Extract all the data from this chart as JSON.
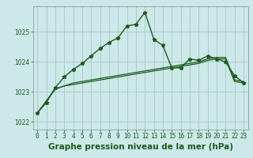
{
  "title": "Graphe pression niveau de la mer (hPa)",
  "background_color": "#cce8e8",
  "grid_color": "#aacccc",
  "line_color_dark": "#1a5c1a",
  "line_color_mid": "#2e7d2e",
  "hours": [
    0,
    1,
    2,
    3,
    4,
    5,
    6,
    7,
    8,
    9,
    10,
    11,
    12,
    13,
    14,
    15,
    16,
    17,
    18,
    19,
    20,
    21,
    22,
    23
  ],
  "pressure_main": [
    1022.3,
    1022.65,
    1023.15,
    1023.5,
    1023.75,
    1023.95,
    1024.2,
    1024.45,
    1024.65,
    1024.8,
    1025.2,
    1025.25,
    1025.65,
    1024.75,
    1024.55,
    1023.8,
    1023.8,
    1024.1,
    1024.05,
    1024.2,
    1024.1,
    1024.0,
    1023.55,
    1023.3
  ],
  "pressure_line2": [
    1022.3,
    1022.7,
    1023.1,
    1023.2,
    1023.25,
    1023.3,
    1023.35,
    1023.4,
    1023.45,
    1023.5,
    1023.55,
    1023.6,
    1023.65,
    1023.7,
    1023.75,
    1023.8,
    1023.85,
    1023.9,
    1023.95,
    1024.05,
    1024.1,
    1024.1,
    1023.35,
    1023.3
  ],
  "pressure_line3": [
    1022.3,
    1022.7,
    1023.1,
    1023.2,
    1023.3,
    1023.35,
    1023.4,
    1023.45,
    1023.5,
    1023.55,
    1023.6,
    1023.65,
    1023.7,
    1023.75,
    1023.8,
    1023.85,
    1023.9,
    1023.95,
    1024.0,
    1024.1,
    1024.15,
    1024.15,
    1023.4,
    1023.35
  ],
  "ylim": [
    1021.75,
    1025.85
  ],
  "yticks": [
    1022,
    1023,
    1024,
    1025
  ],
  "title_fontsize": 7.5,
  "tick_fontsize": 5.5,
  "marker": "*"
}
